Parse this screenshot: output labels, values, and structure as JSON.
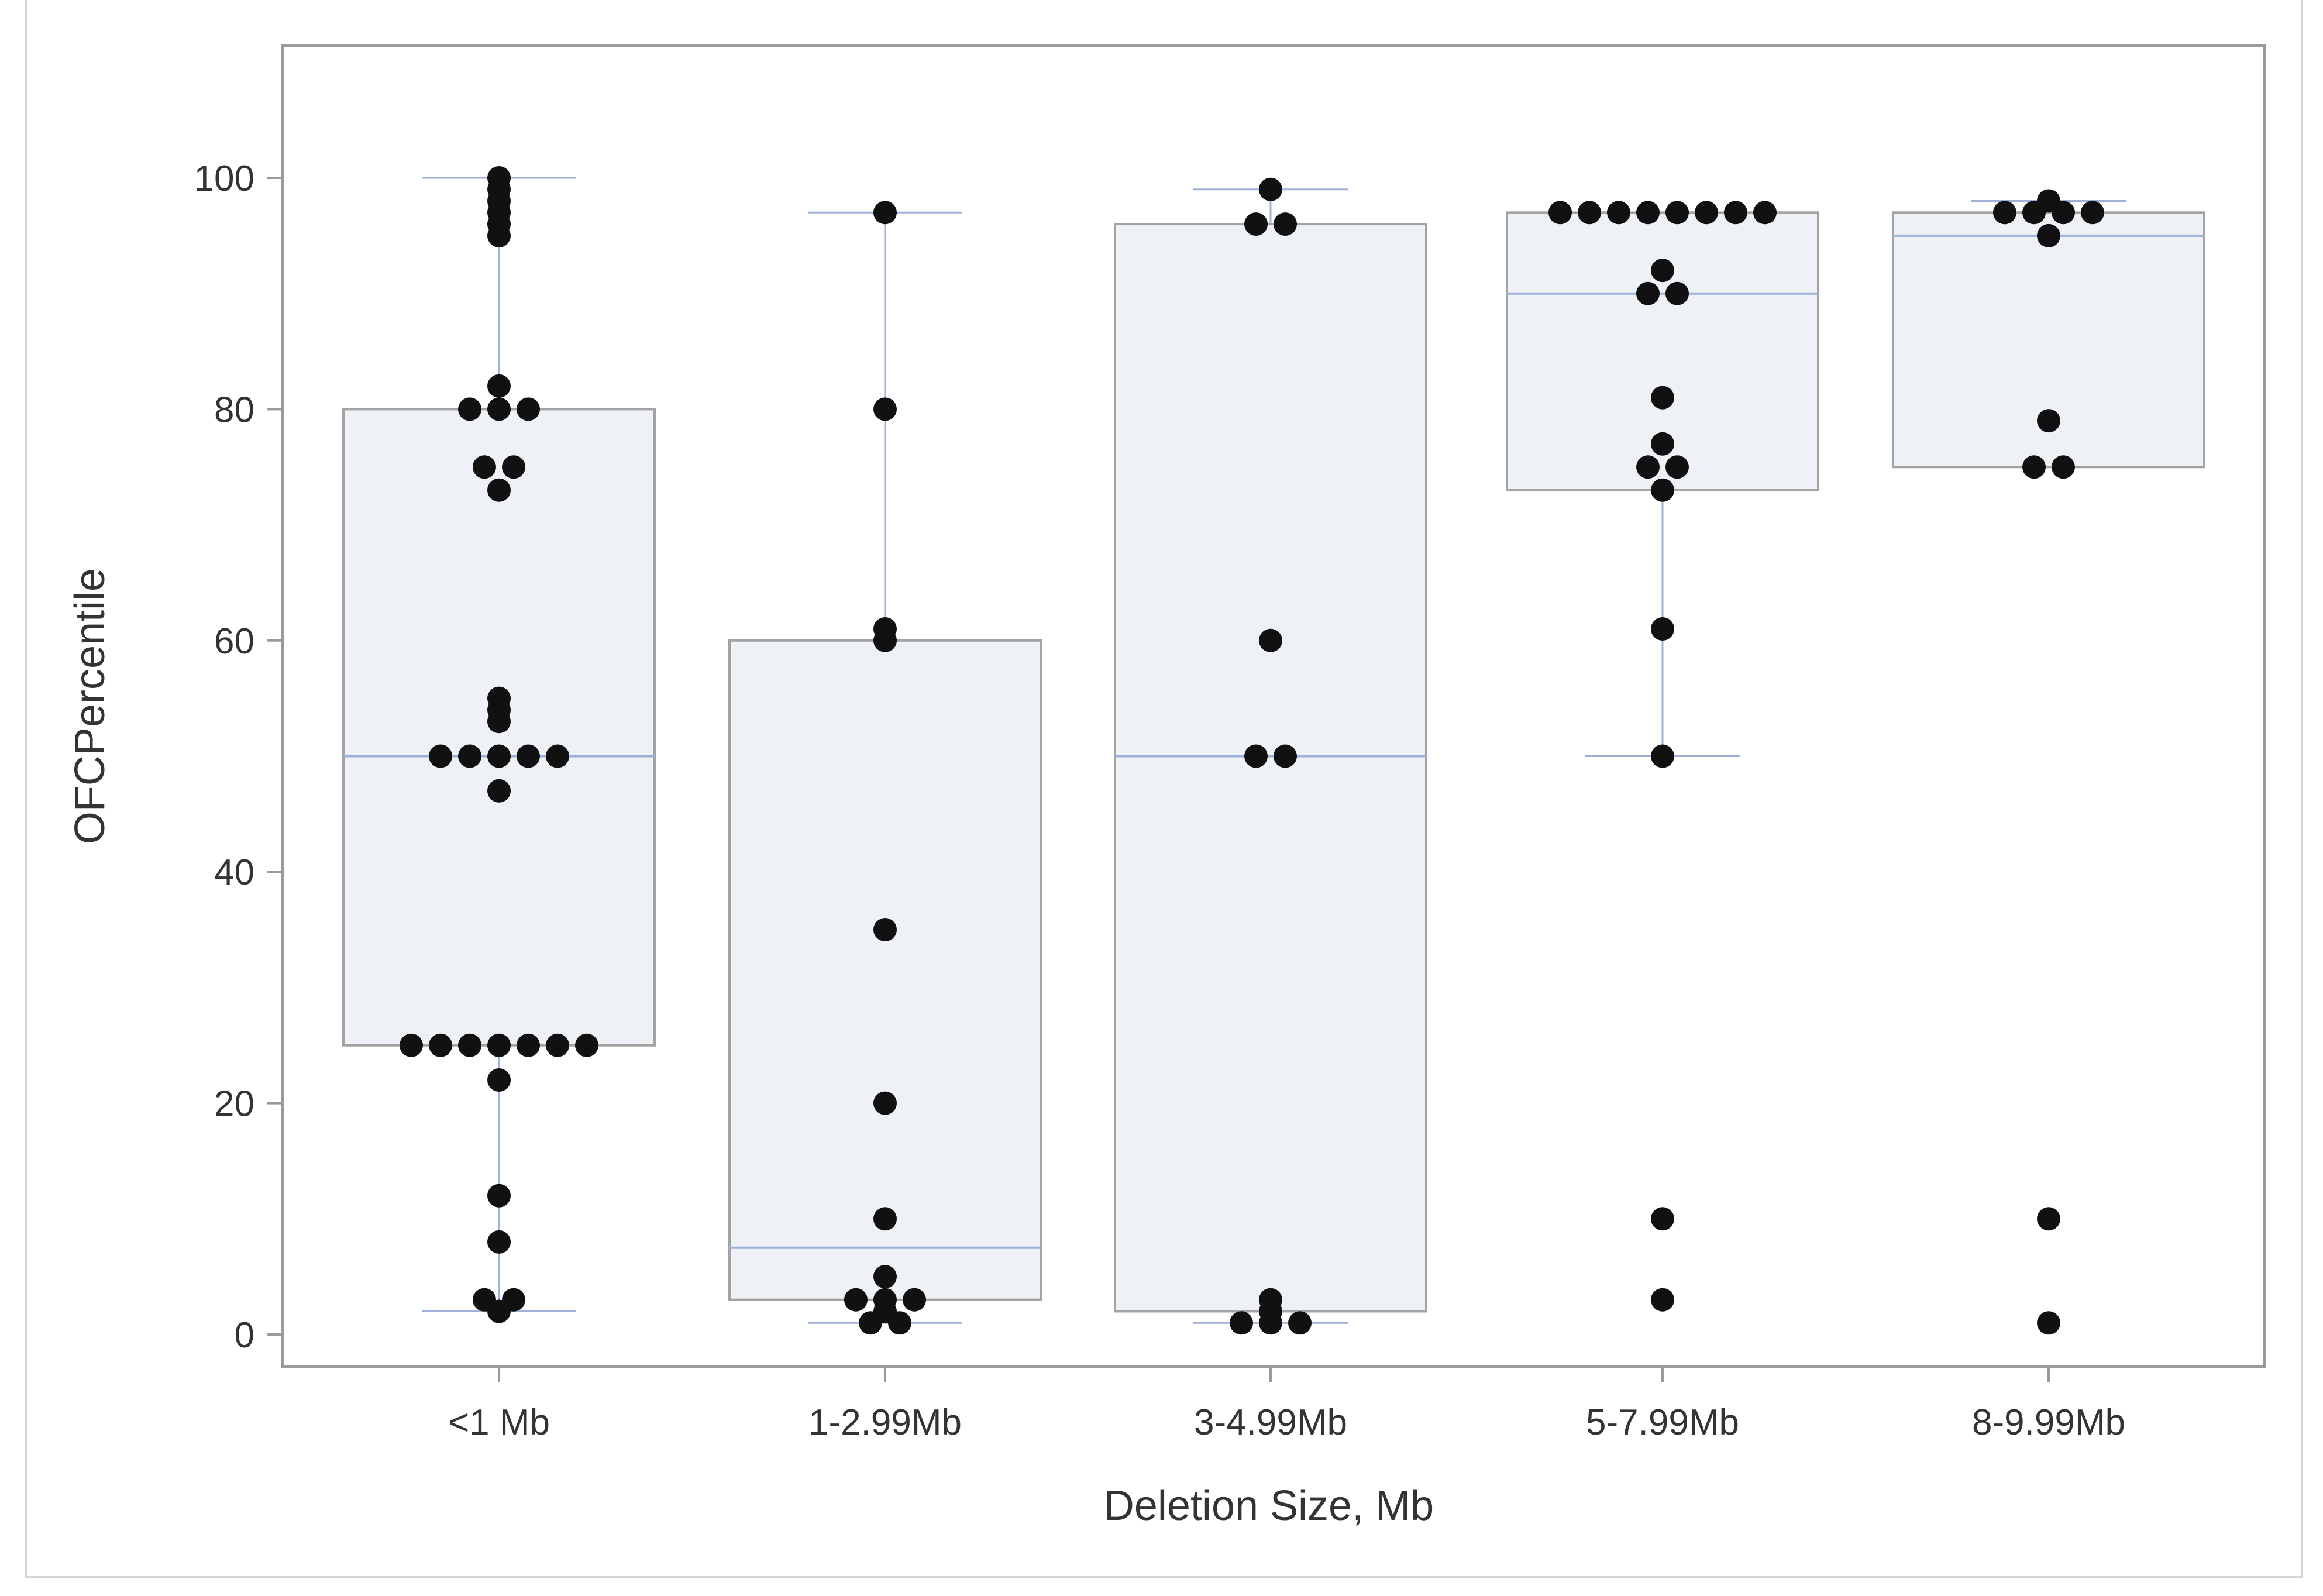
{
  "chart_data": {
    "type": "box",
    "xlabel": "Deletion Size, Mb",
    "ylabel": "OFCPercentile",
    "ylim": [
      -3,
      111
    ],
    "yticks": [
      0,
      20,
      40,
      60,
      80,
      100
    ],
    "categories": [
      "<1 Mb",
      "1-2.99Mb",
      "3-4.99Mb",
      "5-7.99Mb",
      "8-9.99Mb"
    ],
    "boxes": [
      {
        "category": "<1 Mb",
        "whisker_low": 2,
        "q1": 25,
        "median": 50,
        "q3": 80,
        "whisker_high": 100
      },
      {
        "category": "1-2.99Mb",
        "whisker_low": 1,
        "q1": 3,
        "median": 7.5,
        "q3": 60,
        "whisker_high": 97
      },
      {
        "category": "3-4.99Mb",
        "whisker_low": 1,
        "q1": 2,
        "median": 50,
        "q3": 96,
        "whisker_high": 99
      },
      {
        "category": "5-7.99Mb",
        "whisker_low": 50,
        "q1": 73,
        "median": 90,
        "q3": 97,
        "whisker_high": 97
      },
      {
        "category": "8-9.99Mb",
        "whisker_low": 75,
        "q1": 75,
        "median": 95,
        "q3": 97,
        "whisker_high": 98
      }
    ],
    "points": [
      [
        100,
        99,
        98,
        97,
        96,
        95,
        82,
        80,
        80,
        80,
        75,
        75,
        73,
        55,
        54,
        53,
        50,
        50,
        50,
        50,
        50,
        47,
        25,
        25,
        25,
        25,
        25,
        25,
        25,
        22,
        12,
        8,
        3,
        3,
        2
      ],
      [
        97,
        80,
        61,
        60,
        35,
        20,
        10,
        5,
        3,
        3,
        3,
        2,
        1,
        1
      ],
      [
        99,
        96,
        96,
        60,
        50,
        50,
        3,
        2,
        1,
        1,
        1
      ],
      [
        97,
        97,
        97,
        97,
        97,
        97,
        97,
        97,
        92,
        90,
        90,
        81,
        77,
        75,
        75,
        73,
        61,
        50,
        10,
        3
      ],
      [
        98,
        97,
        97,
        97,
        97,
        95,
        79,
        75,
        75,
        10,
        1
      ]
    ],
    "colors": {
      "box_fill": "#eef1f6",
      "box_stroke": "#a3a3a3",
      "median_whisker": "#9fb1db",
      "point": "#111111",
      "axis": "#9a9a9a",
      "text": "#333333"
    }
  }
}
